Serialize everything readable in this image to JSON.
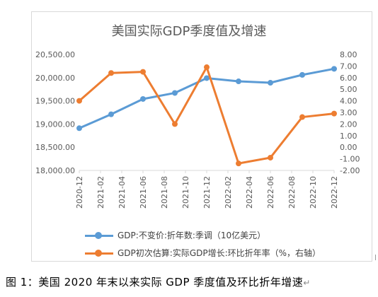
{
  "chart_data": {
    "type": "line",
    "title": "美国实际GDP季度值及增速",
    "categories": [
      "2020-12",
      "2021-02",
      "2021-04",
      "2021-06",
      "2021-08",
      "2021-10",
      "2021-12",
      "2022-02",
      "2022-04",
      "2022-06",
      "2022-08",
      "2022-10",
      "2022-12"
    ],
    "x_left_axis_ticks": [
      "18,000.00",
      "18,500.00",
      "19,000.00",
      "19,500.00",
      "20,000.00",
      "20,500.00"
    ],
    "y_left_range": [
      18000,
      20500
    ],
    "y_right_range": [
      -2,
      8
    ],
    "y_right_ticks": [
      "-2.00",
      "-1.00",
      "0.00",
      "1.00",
      "2.00",
      "3.00",
      "4.00",
      "5.00",
      "6.00",
      "7.00",
      "8.00"
    ],
    "grid": false,
    "legend_position": "bottom",
    "series": [
      {
        "name": "GDP:不变价:折年数:季调（10亿美元）",
        "axis": "left",
        "color": "#5b9bd5",
        "points": [
          {
            "x": "2020-12",
            "y": 18910
          },
          {
            "x": "2021-03",
            "y": 19210
          },
          {
            "x": "2021-06",
            "y": 19540
          },
          {
            "x": "2021-09",
            "y": 19670
          },
          {
            "x": "2021-12",
            "y": 19990
          },
          {
            "x": "2022-03",
            "y": 19920
          },
          {
            "x": "2022-06",
            "y": 19890
          },
          {
            "x": "2022-09",
            "y": 20060
          },
          {
            "x": "2022-12",
            "y": 20190
          }
        ]
      },
      {
        "name": "GDP初次估算:实际GDP增长:环比折年率（%，右轴）",
        "axis": "right",
        "color": "#ed7d31",
        "points": [
          {
            "x": "2020-12",
            "y": 4.0
          },
          {
            "x": "2021-03",
            "y": 6.4
          },
          {
            "x": "2021-06",
            "y": 6.5
          },
          {
            "x": "2021-09",
            "y": 2.0
          },
          {
            "x": "2021-12",
            "y": 6.9
          },
          {
            "x": "2022-03",
            "y": -1.4
          },
          {
            "x": "2022-06",
            "y": -0.9
          },
          {
            "x": "2022-09",
            "y": 2.6
          },
          {
            "x": "2022-12",
            "y": 2.9
          }
        ]
      }
    ]
  },
  "caption": "图 1：美国 2020 年末以来实际 GDP 季度值及环比折年增速",
  "caption_mark": "↵",
  "legend_mark": "↵"
}
